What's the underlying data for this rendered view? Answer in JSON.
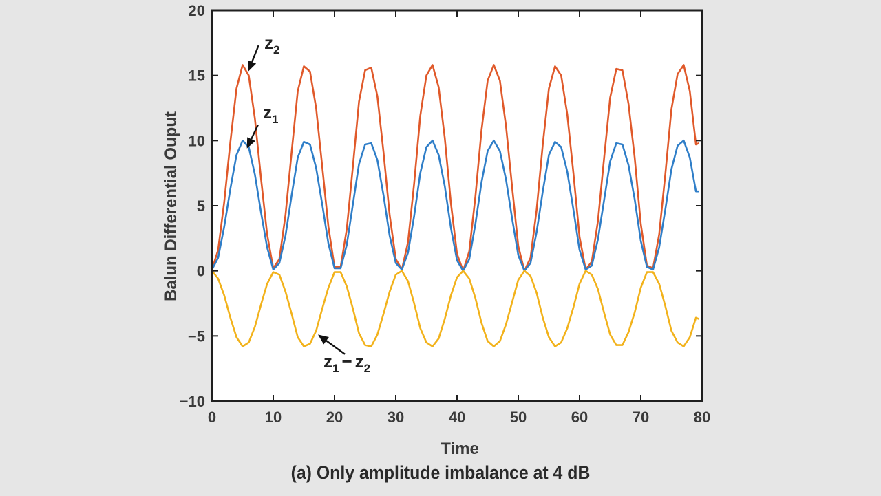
{
  "caption": "(a)  Only amplitude imbalance at 4 dB",
  "chart_data": {
    "type": "line",
    "title": "",
    "xlabel": "Time",
    "ylabel": "Balun Differential Ouput",
    "xlim": [
      0,
      80
    ],
    "ylim": [
      -10,
      20
    ],
    "xticks": [
      0,
      10,
      20,
      30,
      40,
      50,
      60,
      70,
      80
    ],
    "yticks": [
      -10,
      -5,
      0,
      5,
      10,
      15,
      20
    ],
    "xtick_labels": [
      "0",
      "10",
      "20",
      "30",
      "40",
      "50",
      "60",
      "70",
      "80"
    ],
    "ytick_labels": [
      "−10",
      "−5",
      "0",
      "5",
      "10",
      "15",
      "20"
    ],
    "grid": false,
    "legend": "none",
    "series": [
      {
        "key": "z2",
        "color": "#e0592a",
        "x": [
          0,
          1,
          2,
          3,
          4,
          5,
          6,
          7,
          8,
          9,
          10,
          11,
          12,
          13,
          14,
          15,
          16,
          17,
          18,
          19,
          20,
          21,
          22,
          23,
          24,
          25,
          26,
          27,
          28,
          29,
          30,
          31,
          32,
          33,
          34,
          35,
          36,
          37,
          38,
          39,
          40,
          41,
          42,
          43,
          44,
          45,
          46,
          47,
          48,
          49,
          50,
          51,
          52,
          53,
          54,
          55,
          56,
          57,
          58,
          59,
          60,
          61,
          62,
          63,
          64,
          65,
          66,
          67,
          68,
          69,
          70,
          71,
          72,
          73,
          74,
          75,
          76,
          77,
          78,
          79,
          79.5
        ],
        "y": [
          0.1,
          1.6,
          5.3,
          9.9,
          14.0,
          15.8,
          15.0,
          11.7,
          7.1,
          2.8,
          0.2,
          0.9,
          4.3,
          9.1,
          13.8,
          15.7,
          15.3,
          12.5,
          8.0,
          3.4,
          0.3,
          0.3,
          3.2,
          8.0,
          13.0,
          15.4,
          15.6,
          13.4,
          9.1,
          4.3,
          0.9,
          0.1,
          2.2,
          6.7,
          11.9,
          15.0,
          15.8,
          14.1,
          10.2,
          5.2,
          1.3,
          0.0,
          1.5,
          5.7,
          10.8,
          14.6,
          15.8,
          14.6,
          11.1,
          6.4,
          1.9,
          0.0,
          1.0,
          4.7,
          9.7,
          14.0,
          15.7,
          15.0,
          12.0,
          7.5,
          2.6,
          0.1,
          0.7,
          3.8,
          8.6,
          13.3,
          15.5,
          15.4,
          12.8,
          8.7,
          3.6,
          0.4,
          0.2,
          2.8,
          7.4,
          12.4,
          15.1,
          15.8,
          13.8,
          9.7,
          9.8
        ]
      },
      {
        "key": "z1",
        "color": "#2f7ec8",
        "x": [
          0,
          1,
          2,
          3,
          4,
          5,
          6,
          7,
          8,
          9,
          10,
          11,
          12,
          13,
          14,
          15,
          16,
          17,
          18,
          19,
          20,
          21,
          22,
          23,
          24,
          25,
          26,
          27,
          28,
          29,
          30,
          31,
          32,
          33,
          34,
          35,
          36,
          37,
          38,
          39,
          40,
          41,
          42,
          43,
          44,
          45,
          46,
          47,
          48,
          49,
          50,
          51,
          52,
          53,
          54,
          55,
          56,
          57,
          58,
          59,
          60,
          61,
          62,
          63,
          64,
          65,
          66,
          67,
          68,
          69,
          70,
          71,
          72,
          73,
          74,
          75,
          76,
          77,
          78,
          79,
          79.5
        ],
        "y": [
          0.1,
          1.0,
          3.4,
          6.3,
          8.9,
          10.0,
          9.5,
          7.4,
          4.5,
          1.8,
          0.1,
          0.6,
          2.7,
          5.8,
          8.7,
          9.9,
          9.7,
          7.9,
          5.1,
          2.1,
          0.2,
          0.2,
          2.0,
          5.1,
          8.2,
          9.7,
          9.8,
          8.5,
          5.8,
          2.7,
          0.6,
          0.1,
          1.4,
          4.2,
          7.5,
          9.5,
          10.0,
          8.9,
          6.5,
          3.3,
          0.8,
          0.0,
          0.9,
          3.6,
          6.8,
          9.2,
          10.0,
          9.2,
          7.0,
          4.0,
          1.2,
          0.0,
          0.6,
          3.0,
          6.1,
          8.9,
          9.9,
          9.5,
          7.6,
          4.7,
          1.6,
          0.1,
          0.4,
          2.4,
          5.4,
          8.4,
          9.8,
          9.7,
          8.1,
          5.5,
          2.3,
          0.3,
          0.1,
          1.8,
          4.7,
          7.8,
          9.6,
          10.0,
          8.7,
          6.1,
          6.1
        ]
      },
      {
        "key": "z1-z2",
        "color": "#f2b21b",
        "x": [
          0,
          1,
          2,
          3,
          4,
          5,
          6,
          7,
          8,
          9,
          10,
          11,
          12,
          13,
          14,
          15,
          16,
          17,
          18,
          19,
          20,
          21,
          22,
          23,
          24,
          25,
          26,
          27,
          28,
          29,
          30,
          31,
          32,
          33,
          34,
          35,
          36,
          37,
          38,
          39,
          40,
          41,
          42,
          43,
          44,
          45,
          46,
          47,
          48,
          49,
          50,
          51,
          52,
          53,
          54,
          55,
          56,
          57,
          58,
          59,
          60,
          61,
          62,
          63,
          64,
          65,
          66,
          67,
          68,
          69,
          70,
          71,
          72,
          73,
          74,
          75,
          76,
          77,
          78,
          79,
          79.5
        ],
        "y": [
          0.0,
          -0.6,
          -1.9,
          -3.6,
          -5.1,
          -5.8,
          -5.5,
          -4.3,
          -2.6,
          -1.0,
          -0.1,
          -0.3,
          -1.6,
          -3.3,
          -5.1,
          -5.8,
          -5.6,
          -4.6,
          -2.9,
          -1.3,
          -0.1,
          -0.1,
          -1.2,
          -2.9,
          -4.8,
          -5.7,
          -5.8,
          -4.9,
          -3.3,
          -1.6,
          -0.3,
          0.0,
          -0.8,
          -2.5,
          -4.4,
          -5.5,
          -5.8,
          -5.2,
          -3.7,
          -1.9,
          -0.5,
          0.0,
          -0.6,
          -2.1,
          -4.0,
          -5.4,
          -5.8,
          -5.4,
          -4.1,
          -2.4,
          -0.7,
          0.0,
          -0.4,
          -1.7,
          -3.6,
          -5.1,
          -5.8,
          -5.5,
          -4.4,
          -2.8,
          -1.0,
          0.0,
          -0.3,
          -1.4,
          -3.2,
          -4.9,
          -5.7,
          -5.7,
          -4.7,
          -3.2,
          -1.3,
          -0.1,
          -0.1,
          -1.0,
          -2.7,
          -4.6,
          -5.5,
          -5.8,
          -5.1,
          -3.6,
          -3.7
        ]
      }
    ],
    "annotations": [
      {
        "key": "z2",
        "main": "z",
        "sub": "2",
        "tail": [
          7.6,
          17.3
        ],
        "head": [
          5.9,
          15.3
        ]
      },
      {
        "key": "z1",
        "main": "z",
        "sub": "1",
        "tail": [
          7.5,
          11.2
        ],
        "head": [
          5.7,
          9.4
        ]
      },
      {
        "key": "z1-z2",
        "main": "z",
        "sub1": "1",
        "minus": "−",
        "sub2": "2",
        "tail": [
          21.7,
          -6.4
        ],
        "head": [
          17.3,
          -4.9
        ]
      }
    ]
  }
}
